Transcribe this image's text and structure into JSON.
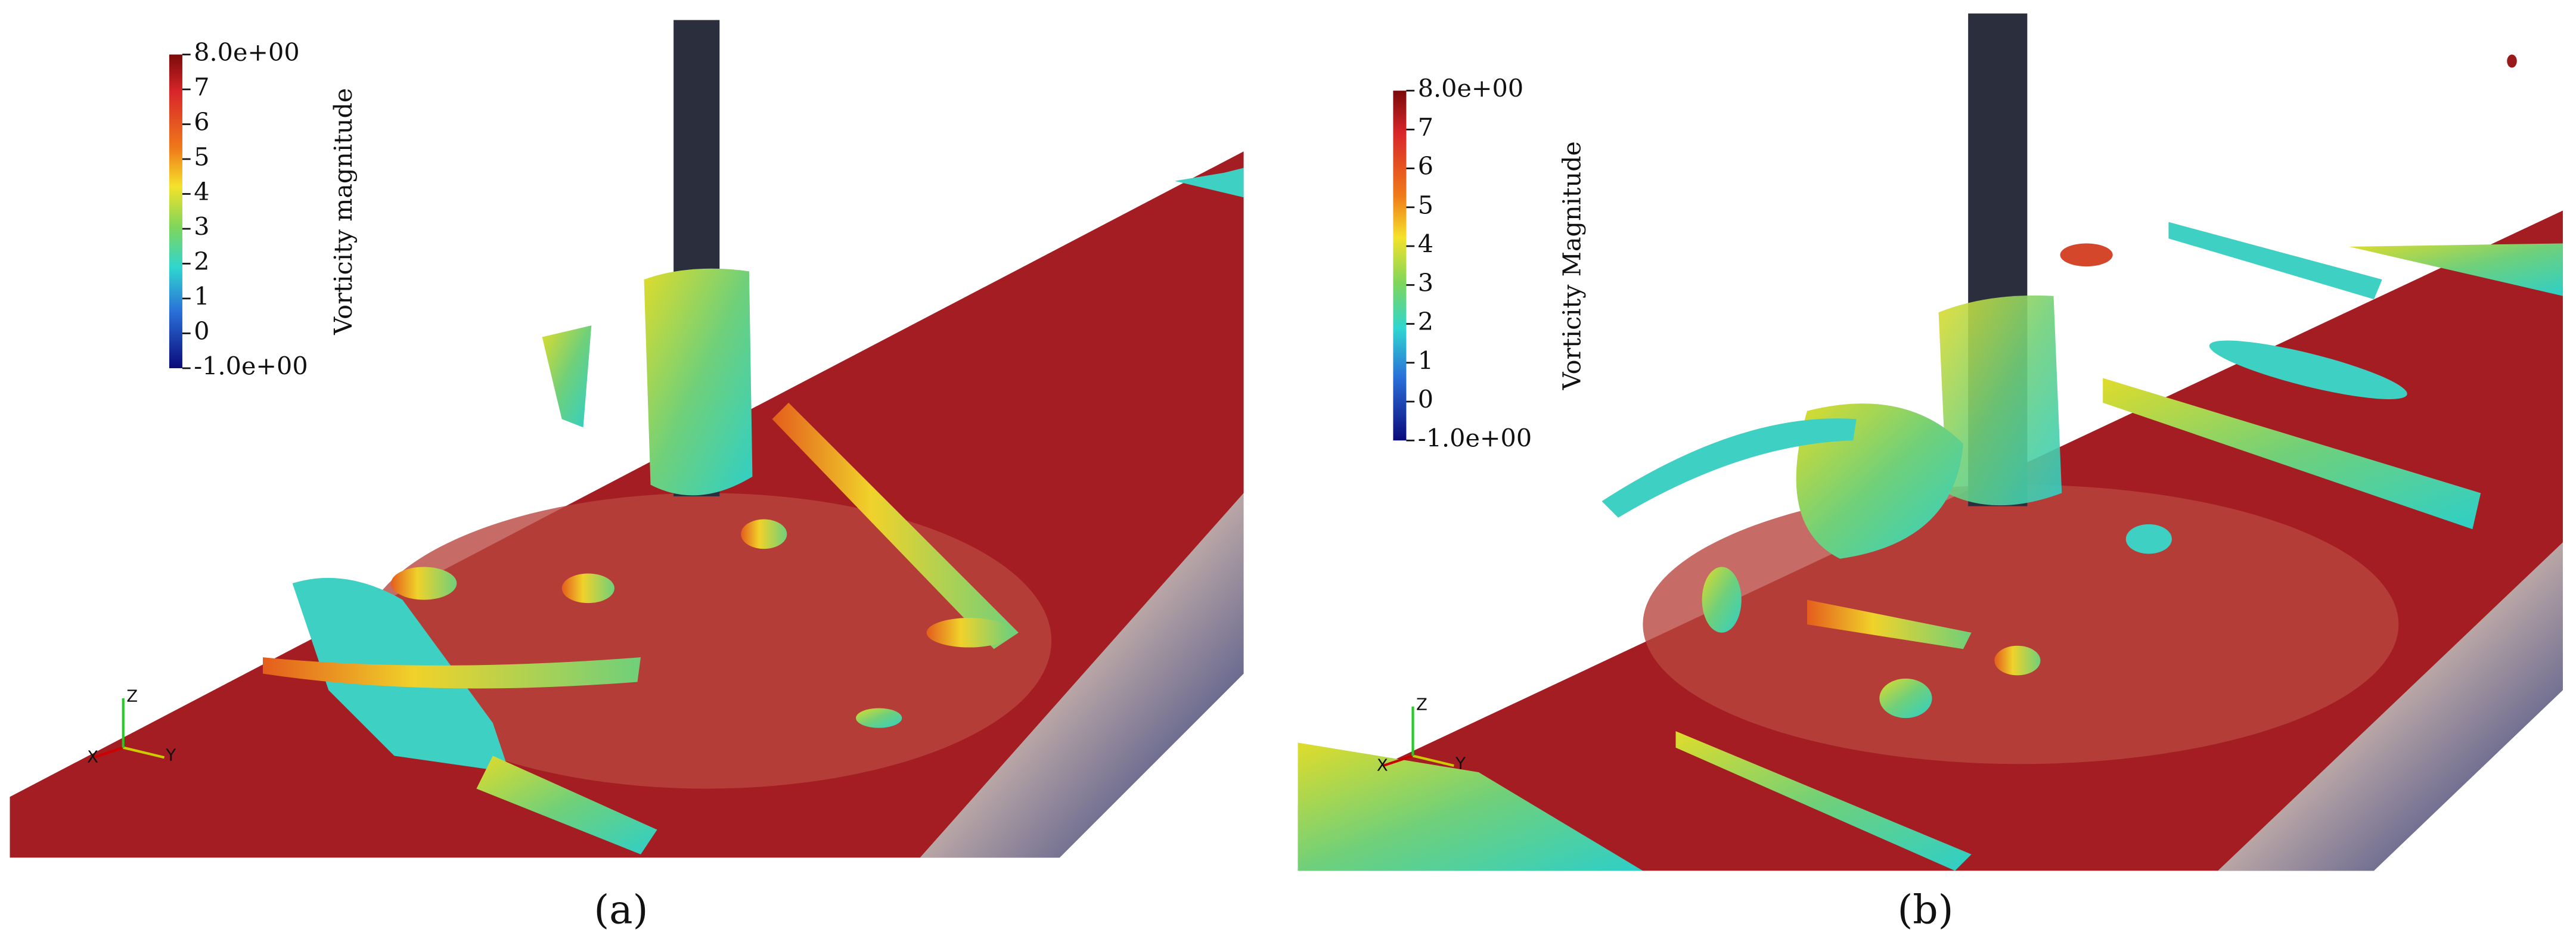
{
  "panels": [
    {
      "label": "(a)",
      "colorbar": {
        "title": "Vorticity magnitude",
        "range": [
          -1,
          8
        ],
        "ticks": [
          {
            "value": 8,
            "label": "8.0e+00"
          },
          7,
          6,
          5,
          4,
          3,
          2,
          1,
          0,
          {
            "value": -1,
            "label": "-1.0e+00"
          }
        ]
      },
      "axes": [
        "X",
        "Y",
        "Z"
      ]
    },
    {
      "label": "(b)",
      "colorbar": {
        "title": "Vorticity Magnitude",
        "range": [
          -1,
          8
        ],
        "ticks": [
          {
            "value": 8,
            "label": "8.0e+00"
          },
          7,
          6,
          5,
          4,
          3,
          2,
          1,
          0,
          {
            "value": -1,
            "label": "-1.0e+00"
          }
        ]
      },
      "axes": [
        "X",
        "Y",
        "Z"
      ]
    }
  ]
}
